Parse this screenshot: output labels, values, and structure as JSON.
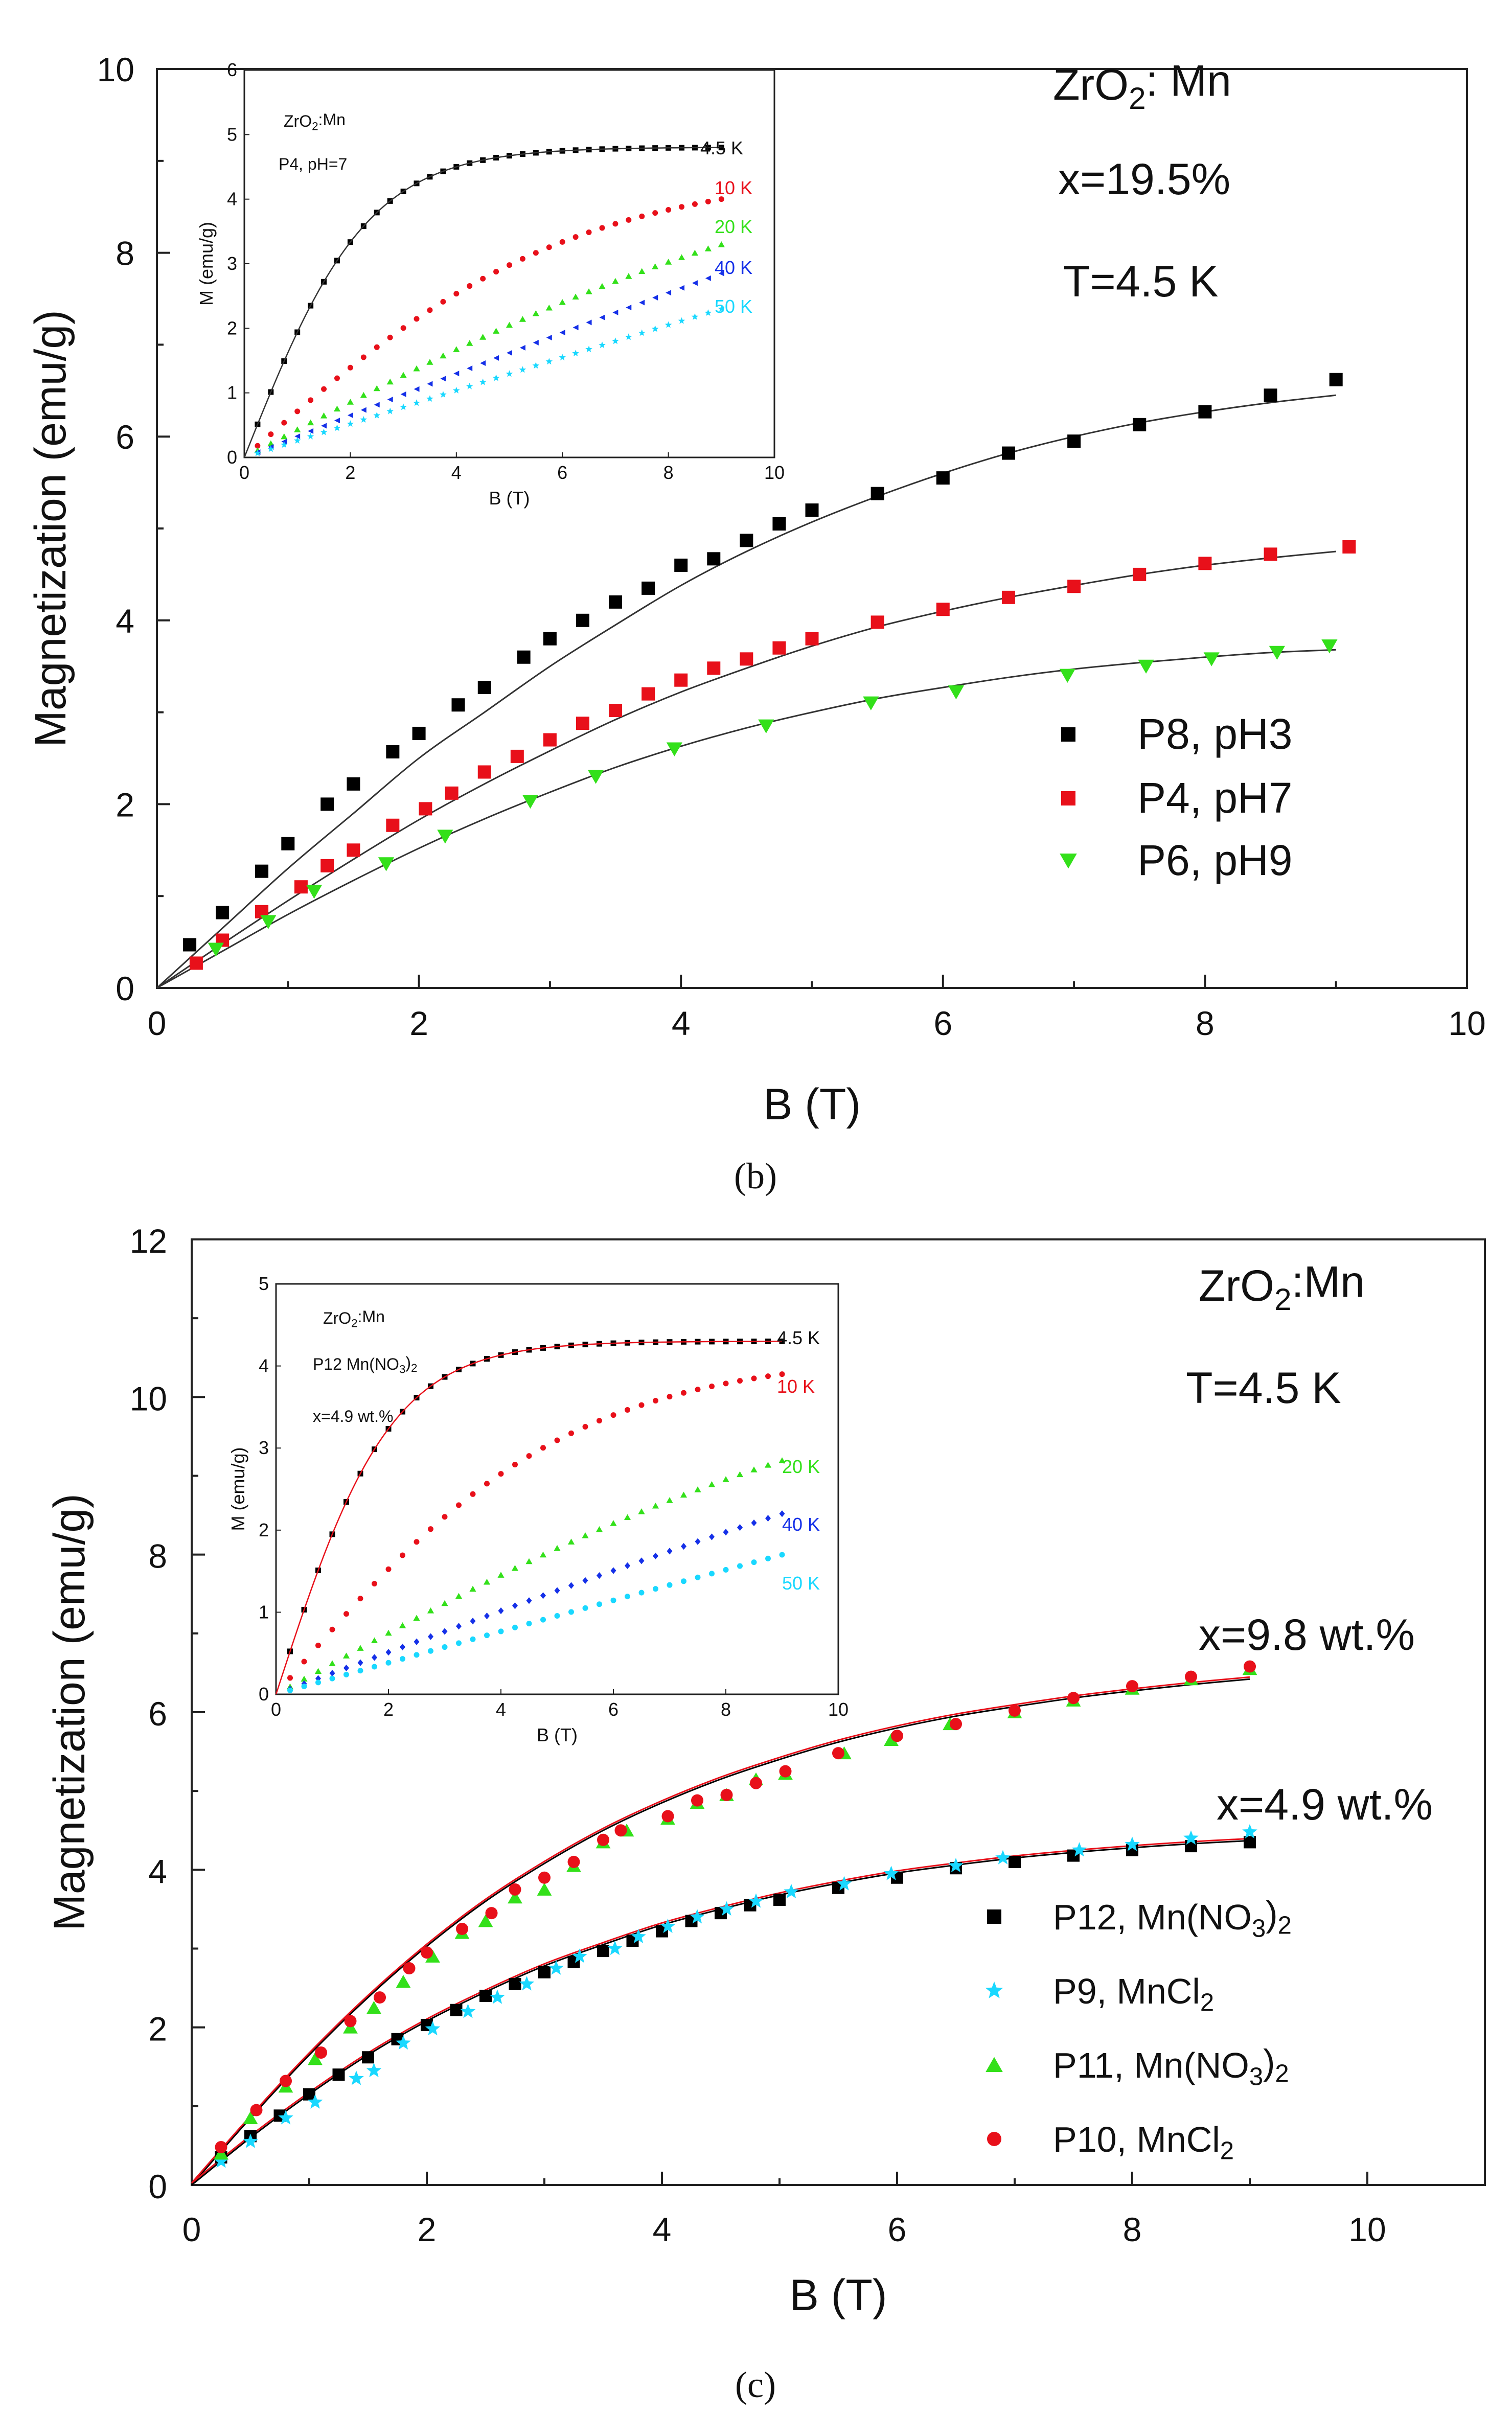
{
  "chart_data": [
    {
      "panel_label": "(b)",
      "type": "scatter",
      "xlabel": "B (T)",
      "ylabel": "Magnetization (emu/g)",
      "xlim": [
        0,
        10
      ],
      "ylim": [
        0,
        10
      ],
      "xticks": [
        "0",
        "2",
        "4",
        "6",
        "8",
        "10"
      ],
      "yticks": [
        "0",
        "2",
        "4",
        "6",
        "8",
        "10"
      ],
      "annotations": {
        "material": "ZrO",
        "material_sub": "2",
        "material_rest": ": Mn",
        "x": "x=19.5%",
        "temp": "T=4.5 K"
      },
      "series": [
        {
          "name": "P8, pH3",
          "color": "#000000",
          "marker": "square",
          "x": [
            0.25,
            0.5,
            0.8,
            1.0,
            1.3,
            1.5,
            1.8,
            2.0,
            2.3,
            2.5,
            2.8,
            3.0,
            3.25,
            3.5,
            3.75,
            4.0,
            4.25,
            4.5,
            4.75,
            5.0,
            5.5,
            6.0,
            6.5,
            7.0,
            7.5,
            8.0,
            8.5,
            9.0
          ],
          "y": [
            0.47,
            0.82,
            1.27,
            1.57,
            2.0,
            2.22,
            2.57,
            2.77,
            3.08,
            3.27,
            3.6,
            3.8,
            4.0,
            4.2,
            4.35,
            4.6,
            4.67,
            4.87,
            5.05,
            5.2,
            5.38,
            5.55,
            5.82,
            5.95,
            6.13,
            6.27,
            6.45,
            6.62
          ],
          "fit_x": [
            0,
            0.5,
            1,
            1.5,
            2,
            2.5,
            3,
            3.5,
            4,
            4.5,
            5,
            5.5,
            6,
            6.5,
            7,
            7.5,
            8,
            8.5,
            9
          ],
          "fit_y": [
            0,
            0.65,
            1.3,
            1.9,
            2.5,
            3.0,
            3.5,
            3.95,
            4.38,
            4.75,
            5.07,
            5.35,
            5.6,
            5.82,
            6.0,
            6.15,
            6.27,
            6.37,
            6.45
          ]
        },
        {
          "name": "P4, pH7",
          "color": "#e8101a",
          "marker": "square",
          "x": [
            0.3,
            0.5,
            0.8,
            1.1,
            1.3,
            1.5,
            1.8,
            2.05,
            2.25,
            2.5,
            2.75,
            3.0,
            3.25,
            3.5,
            3.75,
            4.0,
            4.25,
            4.5,
            4.75,
            5.0,
            5.5,
            6.0,
            6.5,
            7.0,
            7.5,
            8.0,
            8.5,
            9.1
          ],
          "y": [
            0.27,
            0.52,
            0.83,
            1.1,
            1.33,
            1.5,
            1.77,
            1.95,
            2.12,
            2.35,
            2.52,
            2.7,
            2.88,
            3.02,
            3.2,
            3.35,
            3.48,
            3.58,
            3.7,
            3.8,
            3.98,
            4.12,
            4.25,
            4.37,
            4.5,
            4.62,
            4.72,
            4.8
          ],
          "fit_x": [
            0,
            0.5,
            1,
            1.5,
            2,
            2.5,
            3,
            3.5,
            4,
            4.5,
            5,
            5.5,
            6,
            6.5,
            7,
            7.5,
            8,
            8.5,
            9
          ],
          "fit_y": [
            0,
            0.48,
            0.95,
            1.4,
            1.83,
            2.22,
            2.58,
            2.92,
            3.22,
            3.48,
            3.72,
            3.93,
            4.1,
            4.25,
            4.38,
            4.5,
            4.6,
            4.68,
            4.75
          ]
        },
        {
          "name": "P6, pH9",
          "color": "#33e01a",
          "marker": "triangle-down",
          "x": [
            0.45,
            0.85,
            1.2,
            1.75,
            2.2,
            2.85,
            3.35,
            3.95,
            4.65,
            5.45,
            6.1,
            6.95,
            7.55,
            8.05,
            8.55,
            8.95
          ],
          "y": [
            0.42,
            0.72,
            1.05,
            1.35,
            1.65,
            2.03,
            2.3,
            2.6,
            2.85,
            3.1,
            3.22,
            3.4,
            3.5,
            3.58,
            3.65,
            3.72
          ],
          "fit_x": [
            0,
            0.5,
            1,
            1.5,
            2,
            2.5,
            3,
            3.5,
            4,
            4.5,
            5,
            5.5,
            6,
            6.5,
            7,
            7.5,
            8,
            8.5,
            9
          ],
          "fit_y": [
            0,
            0.4,
            0.8,
            1.17,
            1.52,
            1.84,
            2.13,
            2.4,
            2.63,
            2.83,
            3.0,
            3.15,
            3.27,
            3.38,
            3.47,
            3.54,
            3.6,
            3.65,
            3.68
          ]
        }
      ],
      "legend": [
        "P8, pH3",
        "P4, pH7",
        "P6, pH9"
      ],
      "inset": {
        "xlabel": "B (T)",
        "ylabel": "M (emu/g)",
        "xlim": [
          0,
          10
        ],
        "ylim": [
          0,
          6
        ],
        "xticks": [
          "0",
          "2",
          "4",
          "6",
          "8",
          "10"
        ],
        "yticks": [
          "0",
          "1",
          "2",
          "3",
          "4",
          "5",
          "6"
        ],
        "text1": "ZrO",
        "text1_sub": "2",
        "text1_rest": ":Mn",
        "text2": "P4, pH=7",
        "series": [
          {
            "name": "4.5 K",
            "color": "#000000",
            "marker": "square",
            "final": 4.8,
            "scale": 5.0,
            "curvature": 0.38
          },
          {
            "name": "10 K",
            "color": "#e8101a",
            "marker": "circle",
            "final": 4.0,
            "scale": 9.0,
            "curvature": 0.15
          },
          {
            "name": "20 K",
            "color": "#33e01a",
            "marker": "triangle-up",
            "final": 3.3,
            "scale": 14.0,
            "curvature": 0.06
          },
          {
            "name": "40 K",
            "color": "#1530e8",
            "marker": "triangle-left",
            "final": 2.85,
            "scale": 30.0,
            "curvature": 0.02
          },
          {
            "name": "50 K",
            "color": "#19d8ff",
            "marker": "star",
            "final": 2.3,
            "scale": 40.0,
            "curvature": 0.01
          }
        ]
      }
    },
    {
      "panel_label": "(c)",
      "type": "scatter",
      "xlabel": "B (T)",
      "ylabel": "Magnetization (emu/g)",
      "xlim": [
        0,
        11
      ],
      "ylim": [
        0,
        12
      ],
      "xticks": [
        "0",
        "2",
        "4",
        "6",
        "8",
        "10"
      ],
      "yticks": [
        "0",
        "2",
        "4",
        "6",
        "8",
        "10",
        "12"
      ],
      "annotations": {
        "material": "ZrO",
        "material_sub": "2",
        "material_rest": ":Mn",
        "temp": "T=4.5 K",
        "high": "x=9.8 wt.%",
        "low": "x=4.9 wt.%"
      },
      "series": [
        {
          "name": "P12, Mn(NO3)2",
          "color": "#000000",
          "marker": "square",
          "x": [
            0.25,
            0.5,
            0.75,
            1.0,
            1.25,
            1.5,
            1.75,
            2.0,
            2.25,
            2.5,
            2.75,
            3.0,
            3.25,
            3.5,
            3.75,
            4.0,
            4.25,
            4.5,
            4.75,
            5.0,
            5.5,
            6.0,
            6.5,
            7.0,
            7.5,
            8.0,
            8.5,
            9.0
          ],
          "y": [
            0.35,
            0.62,
            0.88,
            1.15,
            1.4,
            1.62,
            1.85,
            2.03,
            2.22,
            2.4,
            2.55,
            2.7,
            2.83,
            2.97,
            3.1,
            3.22,
            3.35,
            3.45,
            3.55,
            3.62,
            3.77,
            3.9,
            4.02,
            4.1,
            4.18,
            4.25,
            4.3,
            4.35
          ]
        },
        {
          "name": "P9, MnCl2",
          "color": "#19d8ff",
          "marker": "star",
          "x": [
            0.25,
            0.5,
            0.8,
            1.05,
            1.4,
            1.55,
            1.8,
            2.05,
            2.35,
            2.6,
            2.85,
            3.1,
            3.3,
            3.6,
            3.8,
            4.05,
            4.3,
            4.55,
            4.8,
            5.1,
            5.55,
            5.95,
            6.5,
            6.9,
            7.55,
            8.0,
            8.5,
            9.0
          ],
          "y": [
            0.3,
            0.55,
            0.85,
            1.05,
            1.35,
            1.45,
            1.8,
            1.98,
            2.2,
            2.38,
            2.55,
            2.75,
            2.9,
            3.0,
            3.15,
            3.28,
            3.4,
            3.5,
            3.6,
            3.72,
            3.82,
            3.95,
            4.05,
            4.15,
            4.25,
            4.32,
            4.4,
            4.48
          ]
        },
        {
          "name": "P11, Mn(NO3)2",
          "color": "#33e01a",
          "marker": "triangle-up",
          "x": [
            0.25,
            0.5,
            0.8,
            1.05,
            1.35,
            1.55,
            1.8,
            2.05,
            2.3,
            2.5,
            2.75,
            3.0,
            3.25,
            3.5,
            3.7,
            4.05,
            4.3,
            4.55,
            4.8,
            5.05,
            5.55,
            5.95,
            6.45,
            7.0,
            7.5,
            8.0,
            8.5,
            9.0
          ],
          "y": [
            0.4,
            0.85,
            1.25,
            1.6,
            2.0,
            2.25,
            2.58,
            2.9,
            3.2,
            3.35,
            3.65,
            3.75,
            4.05,
            4.35,
            4.5,
            4.65,
            4.85,
            4.95,
            5.15,
            5.22,
            5.48,
            5.65,
            5.85,
            6.0,
            6.15,
            6.3,
            6.42,
            6.55
          ]
        },
        {
          "name": "P10, MnCl2",
          "color": "#e8101a",
          "marker": "circle",
          "x": [
            0.25,
            0.55,
            0.8,
            1.1,
            1.35,
            1.6,
            1.85,
            2.0,
            2.3,
            2.55,
            2.75,
            3.0,
            3.25,
            3.5,
            3.65,
            4.05,
            4.3,
            4.55,
            4.8,
            5.05,
            5.5,
            6.0,
            6.5,
            7.0,
            7.5,
            8.0,
            8.5,
            9.0
          ],
          "y": [
            0.48,
            0.95,
            1.32,
            1.68,
            2.08,
            2.38,
            2.75,
            2.95,
            3.25,
            3.45,
            3.75,
            3.9,
            4.1,
            4.38,
            4.5,
            4.68,
            4.88,
            4.95,
            5.1,
            5.25,
            5.48,
            5.7,
            5.85,
            6.02,
            6.18,
            6.33,
            6.45,
            6.58
          ]
        }
      ],
      "fits": [
        {
          "group": "high",
          "colors": [
            "#000000",
            "#e8101a"
          ],
          "fit_x": [
            0,
            0.5,
            1,
            1.5,
            2,
            2.5,
            3,
            3.5,
            4,
            4.5,
            5,
            5.5,
            6,
            6.5,
            7,
            7.5,
            8,
            8.5,
            9
          ],
          "fit_y": [
            0,
            0.85,
            1.65,
            2.38,
            3.03,
            3.6,
            4.08,
            4.5,
            4.85,
            5.15,
            5.4,
            5.62,
            5.8,
            5.95,
            6.07,
            6.18,
            6.27,
            6.35,
            6.42
          ]
        },
        {
          "group": "low",
          "colors": [
            "#000000",
            "#e8101a"
          ],
          "fit_x": [
            0,
            0.5,
            1,
            1.5,
            2,
            2.5,
            3,
            3.5,
            4,
            4.5,
            5,
            5.5,
            6,
            6.5,
            7,
            7.5,
            8,
            8.5,
            9
          ],
          "fit_y": [
            0,
            0.6,
            1.15,
            1.65,
            2.08,
            2.45,
            2.78,
            3.05,
            3.3,
            3.5,
            3.68,
            3.83,
            3.96,
            4.06,
            4.15,
            4.22,
            4.28,
            4.33,
            4.37
          ]
        }
      ],
      "legend": [
        {
          "pre": "P12, Mn(NO",
          "sub1": "3",
          "mid": ")",
          "sub2": "2"
        },
        {
          "pre": "P9, MnCl",
          "sub1": "2",
          "mid": "",
          "sub2": ""
        },
        {
          "pre": "P11, Mn(NO",
          "sub1": "3",
          "mid": ")",
          "sub2": "2"
        },
        {
          "pre": "P10, MnCl",
          "sub1": "2",
          "mid": "",
          "sub2": ""
        }
      ],
      "inset": {
        "xlabel": "B (T)",
        "ylabel": "M (emu/g)",
        "xlim": [
          0,
          10
        ],
        "ylim": [
          0,
          5
        ],
        "xticks": [
          "0",
          "2",
          "4",
          "6",
          "8",
          "10"
        ],
        "yticks": [
          "0",
          "1",
          "2",
          "3",
          "4",
          "5"
        ],
        "text1": "ZrO",
        "text1_sub": "2",
        "text1_rest": ":Mn",
        "text2": "P12 Mn(NO",
        "text2_sub": "3",
        "text2_rest": ")",
        "text2_sub2": "2",
        "text3": "x=4.9 wt.%",
        "series": [
          {
            "name": "4.5 K",
            "color": "#000000",
            "marker": "square",
            "final": 4.3,
            "scale": 4.5,
            "curvature": 0.4
          },
          {
            "name": "10 K",
            "color": "#e8101a",
            "marker": "circle",
            "final": 3.9,
            "scale": 8.0,
            "curvature": 0.18
          },
          {
            "name": "20 K",
            "color": "#33e01a",
            "marker": "triangle-up",
            "final": 2.85,
            "scale": 14.0,
            "curvature": 0.07
          },
          {
            "name": "40 K",
            "color": "#1530e8",
            "marker": "diamond",
            "final": 2.2,
            "scale": 25.0,
            "curvature": 0.03
          },
          {
            "name": "50 K",
            "color": "#19d8ff",
            "marker": "dot",
            "final": 1.7,
            "scale": 40.0,
            "curvature": 0.01
          }
        ]
      }
    }
  ]
}
